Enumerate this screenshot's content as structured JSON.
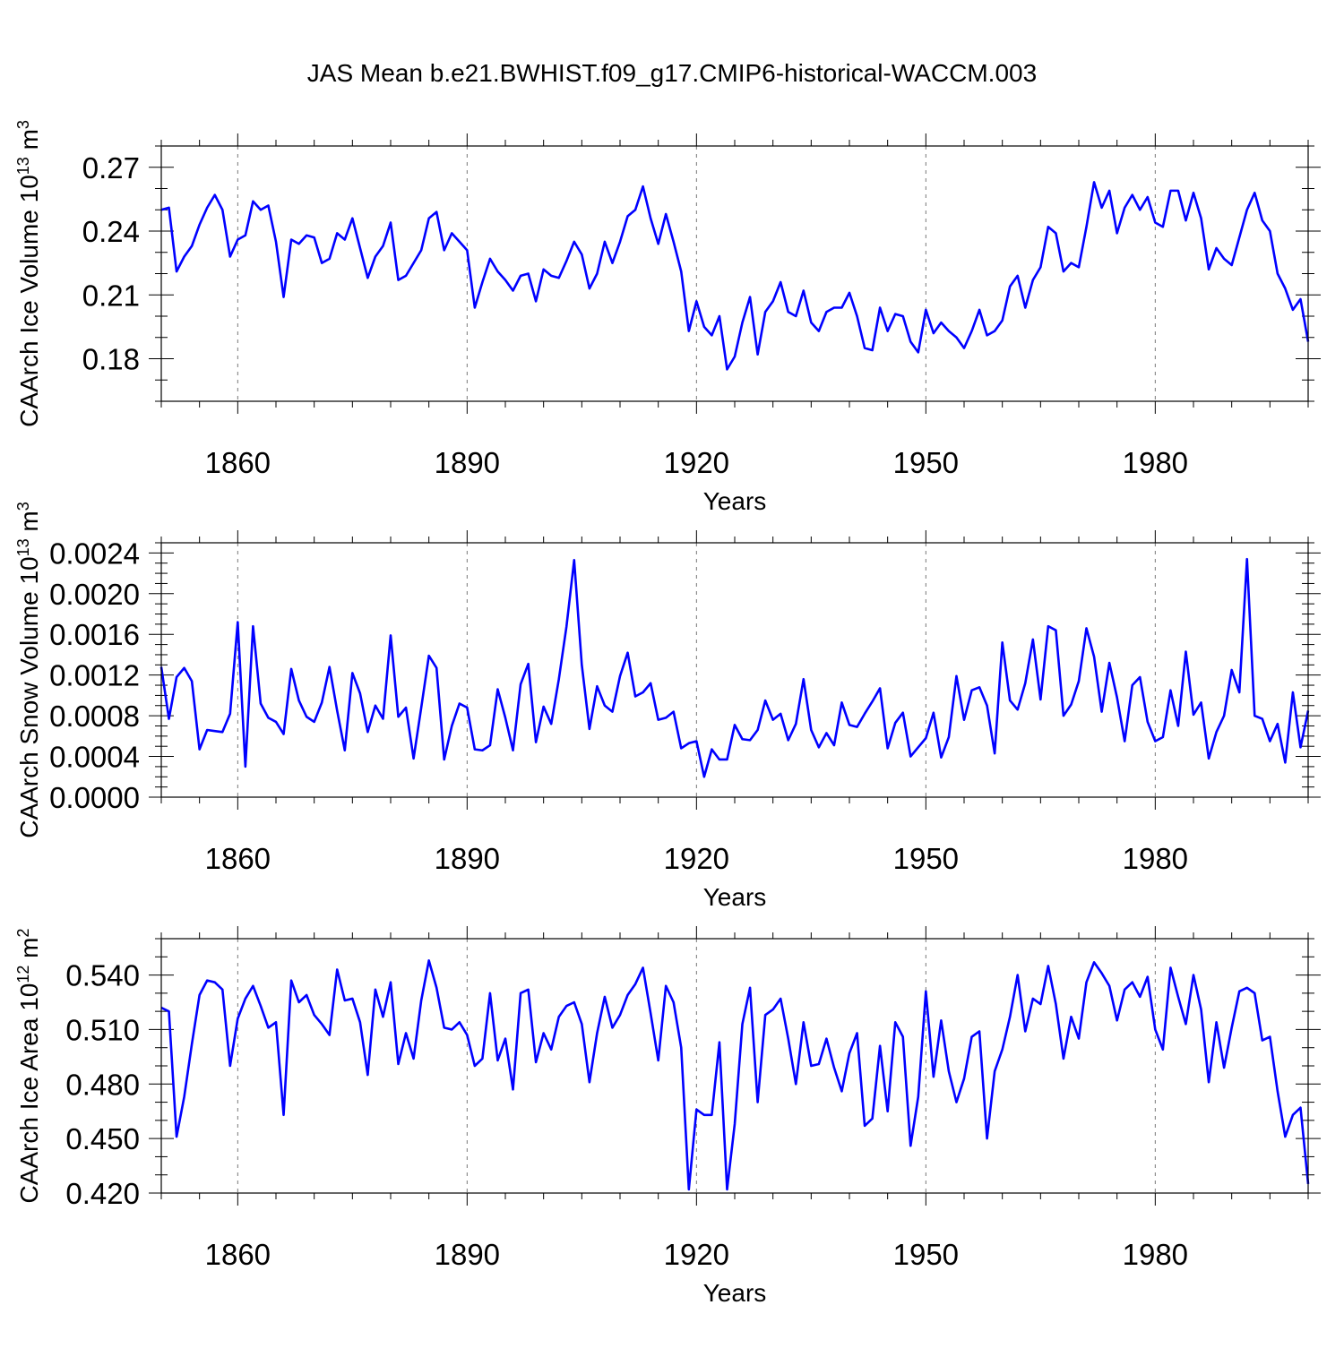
{
  "title": "JAS Mean b.e21.BWHIST.f09_g17.CMIP6-historical-WACCM.003",
  "colors": {
    "series": "#0000ff",
    "axes": "#000000",
    "grid": "#777777"
  },
  "chart_data": [
    {
      "type": "line",
      "xlabel": "Years",
      "ylabel": {
        "base": "CAArch Ice Volume 10",
        "exp1": "13",
        "mid": " m",
        "exp2": "3"
      },
      "xlim": [
        1850,
        2000
      ],
      "ylim": [
        0.16,
        0.28
      ],
      "yticks": [
        "0.18",
        "0.21",
        "0.24",
        "0.27"
      ],
      "ytick_values": [
        0.18,
        0.21,
        0.24,
        0.27
      ],
      "xticks": [
        "1860",
        "1890",
        "1920",
        "1950",
        "1980"
      ],
      "xtick_values": [
        1860,
        1890,
        1920,
        1950,
        1980
      ],
      "minor_y_step": 0.01,
      "minor_x_step": 5,
      "x_start": 1850,
      "values": [
        0.25,
        0.251,
        0.221,
        0.228,
        0.233,
        0.243,
        0.251,
        0.257,
        0.25,
        0.228,
        0.236,
        0.238,
        0.254,
        0.25,
        0.252,
        0.235,
        0.209,
        0.236,
        0.234,
        0.238,
        0.237,
        0.225,
        0.227,
        0.239,
        0.236,
        0.246,
        0.232,
        0.218,
        0.228,
        0.233,
        0.244,
        0.217,
        0.219,
        0.225,
        0.231,
        0.246,
        0.249,
        0.231,
        0.239,
        0.235,
        0.231,
        0.204,
        0.216,
        0.227,
        0.221,
        0.217,
        0.212,
        0.219,
        0.22,
        0.207,
        0.222,
        0.219,
        0.218,
        0.226,
        0.235,
        0.229,
        0.213,
        0.22,
        0.235,
        0.225,
        0.235,
        0.247,
        0.25,
        0.261,
        0.246,
        0.234,
        0.248,
        0.235,
        0.221,
        0.193,
        0.207,
        0.195,
        0.191,
        0.2,
        0.175,
        0.181,
        0.197,
        0.209,
        0.182,
        0.202,
        0.207,
        0.216,
        0.202,
        0.2,
        0.212,
        0.197,
        0.193,
        0.202,
        0.204,
        0.204,
        0.211,
        0.2,
        0.185,
        0.184,
        0.204,
        0.193,
        0.201,
        0.2,
        0.188,
        0.183,
        0.203,
        0.192,
        0.197,
        0.193,
        0.19,
        0.185,
        0.193,
        0.203,
        0.191,
        0.193,
        0.198,
        0.214,
        0.219,
        0.204,
        0.217,
        0.223,
        0.242,
        0.239,
        0.221,
        0.225,
        0.223,
        0.242,
        0.263,
        0.251,
        0.259,
        0.239,
        0.251,
        0.257,
        0.25,
        0.256,
        0.244,
        0.242,
        0.259,
        0.259,
        0.245,
        0.258,
        0.246,
        0.222,
        0.232,
        0.227,
        0.224,
        0.237,
        0.25,
        0.258,
        0.245,
        0.24,
        0.22,
        0.213,
        0.203,
        0.208,
        0.188
      ]
    },
    {
      "type": "line",
      "xlabel": "Years",
      "ylabel": {
        "base": "CAArch Snow Volume 10",
        "exp1": "13",
        "mid": " m",
        "exp2": "3"
      },
      "xlim": [
        1850,
        2000
      ],
      "ylim": [
        0.0,
        0.0025
      ],
      "yticks": [
        "0.0000",
        "0.0004",
        "0.0008",
        "0.0012",
        "0.0016",
        "0.0020",
        "0.0024"
      ],
      "ytick_values": [
        0.0,
        0.0004,
        0.0008,
        0.0012,
        0.0016,
        0.002,
        0.0024
      ],
      "xticks": [
        "1860",
        "1890",
        "1920",
        "1950",
        "1980"
      ],
      "xtick_values": [
        1860,
        1890,
        1920,
        1950,
        1980
      ],
      "minor_y_step": 0.0001,
      "minor_x_step": 5,
      "x_start": 1850,
      "values": [
        0.00128,
        0.00077,
        0.00118,
        0.00127,
        0.00114,
        0.00047,
        0.00066,
        0.00065,
        0.00064,
        0.00082,
        0.00172,
        0.0003,
        0.00168,
        0.00092,
        0.00078,
        0.00074,
        0.00062,
        0.00126,
        0.00095,
        0.00079,
        0.00074,
        0.00093,
        0.00128,
        0.00085,
        0.00046,
        0.00122,
        0.00102,
        0.00064,
        0.0009,
        0.00077,
        0.00159,
        0.00079,
        0.00088,
        0.00038,
        0.00088,
        0.00139,
        0.00127,
        0.00037,
        0.0007,
        0.00092,
        0.00088,
        0.00047,
        0.00046,
        0.00051,
        0.00106,
        0.00078,
        0.00046,
        0.00111,
        0.00131,
        0.00054,
        0.00089,
        0.00072,
        0.00116,
        0.00168,
        0.00233,
        0.0013,
        0.00067,
        0.00109,
        0.0009,
        0.00084,
        0.00119,
        0.00142,
        0.00099,
        0.00103,
        0.00112,
        0.00076,
        0.00078,
        0.00084,
        0.00048,
        0.00053,
        0.00055,
        0.0002,
        0.00047,
        0.00037,
        0.00037,
        0.00071,
        0.00057,
        0.00056,
        0.00066,
        0.00095,
        0.00076,
        0.00082,
        0.00056,
        0.00072,
        0.00116,
        0.00066,
        0.00049,
        0.00063,
        0.00051,
        0.00093,
        0.00071,
        0.00069,
        0.00082,
        0.00094,
        0.00107,
        0.00048,
        0.00073,
        0.00083,
        0.0004,
        0.00049,
        0.00058,
        0.00083,
        0.00039,
        0.00059,
        0.00119,
        0.00076,
        0.00105,
        0.00108,
        0.0009,
        0.00043,
        0.00152,
        0.00095,
        0.00086,
        0.00112,
        0.00155,
        0.00096,
        0.00168,
        0.00164,
        0.0008,
        0.00091,
        0.00114,
        0.00166,
        0.00138,
        0.00084,
        0.00132,
        0.00098,
        0.00055,
        0.0011,
        0.00118,
        0.00074,
        0.00055,
        0.00059,
        0.00105,
        0.0007,
        0.00143,
        0.00081,
        0.00093,
        0.00038,
        0.00064,
        0.0008,
        0.00125,
        0.00103,
        0.00234,
        0.0008,
        0.00077,
        0.00055,
        0.00072,
        0.00034,
        0.00103,
        0.00049,
        0.00085
      ]
    },
    {
      "type": "line",
      "xlabel": "Years",
      "ylabel": {
        "base": "CAArch Ice Area 10",
        "exp1": "12",
        "mid": " m",
        "exp2": "2"
      },
      "xlim": [
        1850,
        2000
      ],
      "ylim": [
        0.42,
        0.56
      ],
      "yticks": [
        "0.420",
        "0.450",
        "0.480",
        "0.510",
        "0.540"
      ],
      "ytick_values": [
        0.42,
        0.45,
        0.48,
        0.51,
        0.54
      ],
      "xticks": [
        "1860",
        "1890",
        "1920",
        "1950",
        "1980"
      ],
      "xtick_values": [
        1860,
        1890,
        1920,
        1950,
        1980
      ],
      "minor_y_step": 0.01,
      "minor_x_step": 5,
      "x_start": 1850,
      "values": [
        0.522,
        0.52,
        0.451,
        0.473,
        0.502,
        0.529,
        0.537,
        0.536,
        0.532,
        0.49,
        0.516,
        0.527,
        0.534,
        0.523,
        0.511,
        0.514,
        0.463,
        0.537,
        0.525,
        0.529,
        0.518,
        0.513,
        0.507,
        0.543,
        0.526,
        0.527,
        0.514,
        0.485,
        0.532,
        0.517,
        0.536,
        0.491,
        0.508,
        0.494,
        0.526,
        0.548,
        0.533,
        0.511,
        0.51,
        0.514,
        0.507,
        0.49,
        0.494,
        0.53,
        0.493,
        0.505,
        0.477,
        0.53,
        0.532,
        0.492,
        0.508,
        0.499,
        0.517,
        0.523,
        0.525,
        0.513,
        0.481,
        0.508,
        0.528,
        0.511,
        0.518,
        0.529,
        0.535,
        0.544,
        0.519,
        0.493,
        0.534,
        0.525,
        0.5,
        0.422,
        0.466,
        0.463,
        0.463,
        0.503,
        0.422,
        0.458,
        0.513,
        0.533,
        0.47,
        0.518,
        0.521,
        0.527,
        0.505,
        0.48,
        0.514,
        0.49,
        0.491,
        0.505,
        0.489,
        0.476,
        0.497,
        0.508,
        0.457,
        0.461,
        0.501,
        0.465,
        0.514,
        0.506,
        0.446,
        0.473,
        0.531,
        0.484,
        0.515,
        0.487,
        0.47,
        0.483,
        0.506,
        0.509,
        0.45,
        0.487,
        0.499,
        0.517,
        0.54,
        0.509,
        0.527,
        0.524,
        0.545,
        0.524,
        0.494,
        0.517,
        0.505,
        0.536,
        0.547,
        0.541,
        0.534,
        0.515,
        0.532,
        0.536,
        0.528,
        0.539,
        0.51,
        0.499,
        0.544,
        0.528,
        0.513,
        0.54,
        0.521,
        0.481,
        0.514,
        0.489,
        0.511,
        0.531,
        0.533,
        0.53,
        0.504,
        0.506,
        0.476,
        0.451,
        0.463,
        0.467,
        0.425
      ]
    }
  ]
}
